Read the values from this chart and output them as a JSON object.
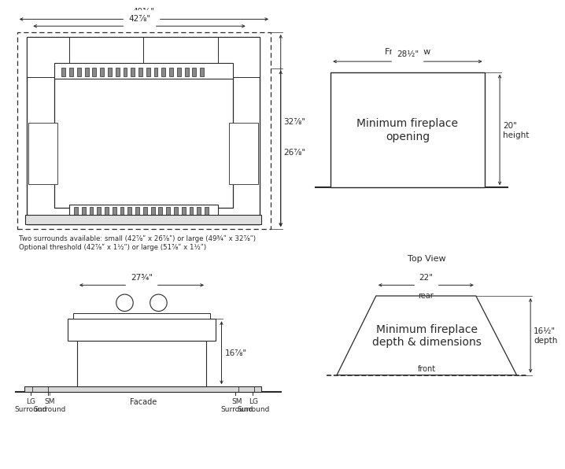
{
  "bg_color": "#ffffff",
  "line_color": "#2a2a2a",
  "dim_49": "49¾\"",
  "dim_42": "42⅞\"",
  "dim_32": "32⅞\"",
  "dim_26": "26⅞\"",
  "dim_28": "28½\"",
  "dim_20": "20\"",
  "dim_27": "27¾\"",
  "dim_16_3_8": "16⅞\"",
  "dim_22": "22\"",
  "dim_16half": "16½\"",
  "label_front_view": "Front View",
  "label_top_view": "Top View",
  "label_min_fp_opening": "Minimum fireplace\nopening",
  "label_min_fp_depth": "Minimum fireplace\ndepth & dimensions",
  "label_rear": "rear",
  "label_front": "front",
  "label_facade": "Facade",
  "label_lg_surround": "LG\nSurround",
  "label_sm_surround": "SM\nSurround",
  "label_height": "height",
  "label_depth": "depth",
  "note1": "Two surrounds available: small (42⅞ʺ x 26⅞ʺ) or large (49¾ʺ x 32⅞ʺ)",
  "note2": "Optional threshold (42⅞ʺ x 1½ʺ) or large (51⅞ʺ x 1½ʺ)"
}
